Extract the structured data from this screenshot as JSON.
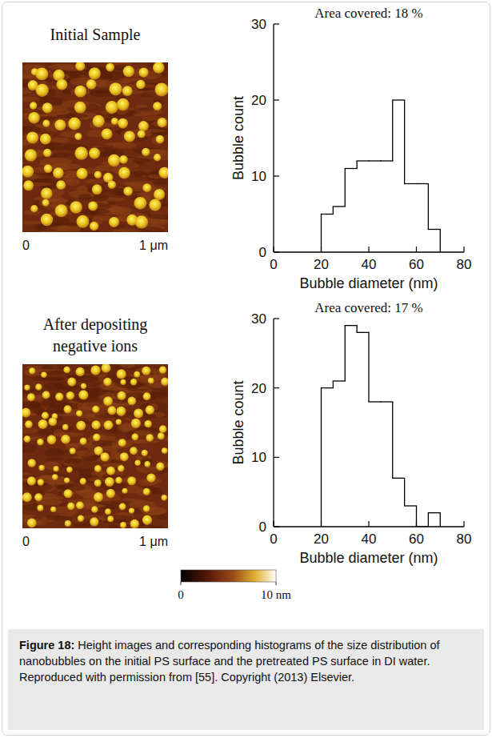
{
  "chart_data": [
    {
      "type": "histogram",
      "title": "Area covered: 18 %",
      "x_label": "Bubble diameter (nm)",
      "y_label": "Bubble count",
      "bins": [
        20,
        25,
        30,
        35,
        40,
        45,
        50,
        55,
        60,
        65,
        70
      ],
      "values": [
        5,
        6,
        11,
        12,
        12,
        12,
        20,
        9,
        9,
        3
      ],
      "color": "#000000",
      "xlim": [
        0,
        80
      ],
      "xticks": [
        0,
        20,
        40,
        60,
        80
      ],
      "ylim": [
        0,
        30
      ],
      "yticks": [
        0,
        10,
        20,
        30
      ]
    },
    {
      "type": "histogram",
      "title": "Area covered: 17 %",
      "x_label": "Bubble diameter (nm)",
      "y_label": "Bubble count",
      "bins": [
        20,
        25,
        30,
        35,
        40,
        45,
        50,
        55,
        60,
        65,
        70
      ],
      "values": [
        20,
        21,
        29,
        28,
        18,
        18,
        7,
        3,
        0,
        2
      ],
      "color": "#000000",
      "xlim": [
        0,
        80
      ],
      "xticks": [
        0,
        20,
        40,
        60,
        80
      ],
      "ylim": [
        0,
        30
      ],
      "yticks": [
        0,
        10,
        20,
        30
      ]
    }
  ],
  "images": [
    {
      "title": "Initial Sample",
      "scale": {
        "range": [
          0,
          1
        ],
        "ticks": [
          0,
          {
            "value": 1,
            "label": "1 μm"
          }
        ]
      }
    },
    {
      "title": "After depositing negative ions",
      "scale": {
        "range": [
          0,
          1
        ],
        "ticks": [
          0,
          {
            "value": 1,
            "label": "1 μm"
          }
        ]
      }
    }
  ],
  "colorbar": {
    "range": [
      0,
      10
    ],
    "ticks": [
      0,
      {
        "value": 10,
        "label": "10 nm"
      }
    ]
  },
  "caption": {
    "label": "Figure 18:",
    "text": "Height images and corresponding histograms of the size distribution of nanobubbles on the initial PS surface and the pretreated PS surface in DI water. Reproduced with permission from [55]. Copyright (2013) Elsevier."
  }
}
